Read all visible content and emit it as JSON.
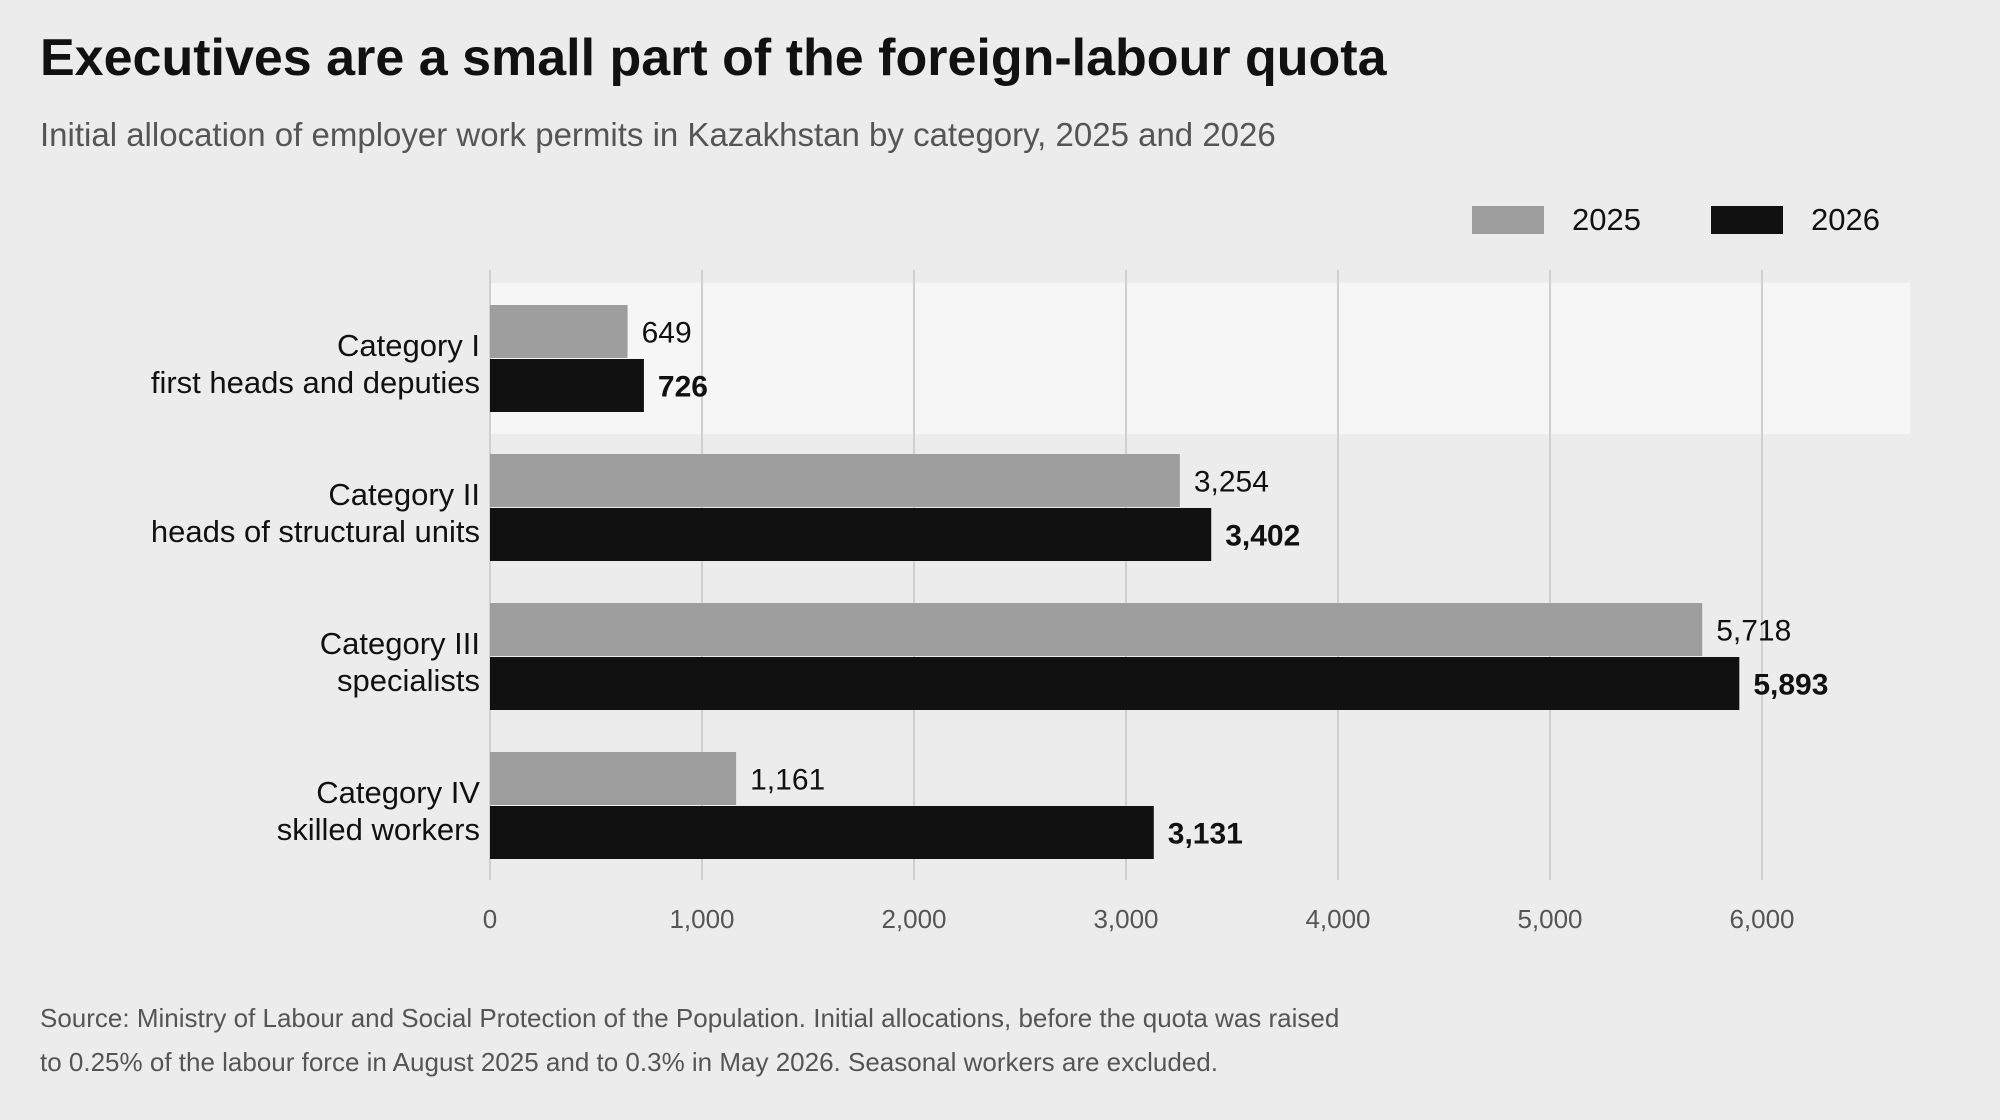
{
  "title": "Executives are a small part of the foreign-labour quota",
  "subtitle": "Initial allocation of employer work permits in Kazakhstan by category, 2025 and 2026",
  "source_line1": "Source: Ministry of Labour and Social Protection of the Population. Initial allocations, before the quota was raised",
  "source_line2": "to 0.25% of the labour force in August 2025 and to 0.3% in May 2026. Seasonal workers are excluded.",
  "colors": {
    "series_2025": "#9e9e9e",
    "series_2026": "#111111",
    "highlight_band": "#f6f6f6",
    "gridline": "#cfcfcf"
  },
  "chart_data": {
    "type": "bar",
    "orientation": "horizontal",
    "categories": [
      {
        "line1": "Category I",
        "line2": "first heads and deputies"
      },
      {
        "line1": "Category II",
        "line2": "heads of structural units"
      },
      {
        "line1": "Category III",
        "line2": "specialists"
      },
      {
        "line1": "Category IV",
        "line2": "skilled workers"
      }
    ],
    "series": [
      {
        "name": "2025",
        "values": [
          649,
          3254,
          5718,
          1161
        ],
        "labels": [
          "649",
          "3,254",
          "5,718",
          "1,161"
        ]
      },
      {
        "name": "2026",
        "values": [
          726,
          3402,
          5893,
          3131
        ],
        "labels": [
          "726",
          "3,402",
          "5,893",
          "3,131"
        ]
      }
    ],
    "xlim": [
      0,
      6700
    ],
    "xticks": [
      0,
      1000,
      2000,
      3000,
      4000,
      5000,
      6000
    ],
    "xtick_labels": [
      "0",
      "1,000",
      "2,000",
      "3,000",
      "4,000",
      "5,000",
      "6,000"
    ],
    "grid": true,
    "legend_position": "top-right",
    "highlighted_category": 0
  }
}
